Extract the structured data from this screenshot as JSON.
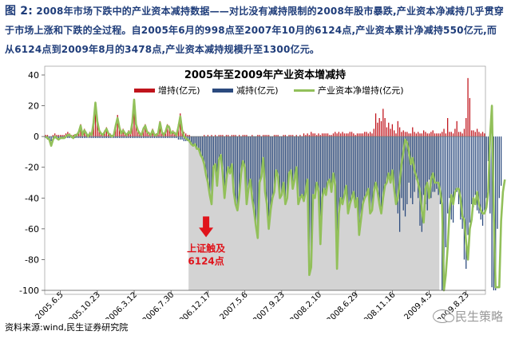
{
  "caption": {
    "figure_label": "图 2:",
    "text": "2008年市场下跌中的产业资本减持数据——对比没有减持限制的2008年股市暴跌,产业资本净减持几乎贯穿于市场上涨和下跌的全过程。自2005年6月的998点至2007年10月的6124点,产业资本累计净减持550亿元,而从6124点到2009年8月的3478点,产业资本减持规模升至1300亿元。"
  },
  "source": "资料来源:wind,民生证券研究院",
  "watermark": "民生策略",
  "colors": {
    "increase": "#c0141c",
    "decrease": "#2b4a7e",
    "net": "#92c05a",
    "shade": "#d3d3d3",
    "arrow": "#e0141c"
  },
  "annotation": {
    "line1": "上证触及",
    "line2": "6124点",
    "x_index": 87
  },
  "chart_data": {
    "type": "bar",
    "title": "2005年至2009年产业资本增减持",
    "xlabel": "",
    "ylabel": "",
    "ylim": [
      -100,
      40
    ],
    "yticks": [
      40,
      20,
      0,
      -20,
      -40,
      -60,
      -80,
      -100
    ],
    "ytick_labels": [
      "40",
      "20",
      "0",
      "-20",
      "-40",
      "-60",
      "-80",
      "-100"
    ],
    "xtick_labels": [
      "2005.6.5",
      "2005.10.23",
      "2006.3.12",
      "2006.7.30",
      "2006.12.17",
      "2007.5.6",
      "2007.9.23",
      "2008.2.10",
      "2008.6.29",
      "2008.11.16",
      "2009.4.5",
      "2009.8.23"
    ],
    "xtick_positions": [
      8,
      28,
      48,
      68,
      88,
      108,
      128,
      148,
      168,
      188,
      208,
      228
    ],
    "shade_range": [
      78,
      214
    ],
    "legend": [
      "增持(亿元)",
      "减持(亿元)",
      "产业资本净增持(亿元)"
    ],
    "legend_position": "top",
    "grid": false,
    "series": [
      {
        "name": "增持(亿元)",
        "values": [
          1,
          1,
          0,
          0,
          1,
          2,
          1,
          1,
          1,
          1,
          1,
          2,
          3,
          2,
          1,
          1,
          1,
          2,
          4,
          8,
          2,
          5,
          3,
          1,
          3,
          2,
          10,
          19,
          12,
          5,
          3,
          2,
          4,
          6,
          3,
          2,
          1,
          2,
          8,
          14,
          7,
          3,
          5,
          3,
          2,
          4,
          3,
          10,
          20,
          9,
          5,
          3,
          2,
          6,
          8,
          4,
          3,
          2,
          5,
          2,
          2,
          3,
          10,
          4,
          2,
          4,
          8,
          7,
          3,
          4,
          3,
          2,
          8,
          15,
          6,
          3,
          2,
          1,
          1,
          0,
          0,
          0,
          0,
          0,
          0,
          0,
          1,
          0,
          1,
          0,
          1,
          0,
          1,
          0,
          1,
          1,
          1,
          0,
          1,
          1,
          0,
          1,
          1,
          1,
          0,
          1,
          0,
          1,
          1,
          1,
          0,
          0,
          1,
          0,
          0,
          1,
          1,
          0,
          1,
          1,
          1,
          1,
          0,
          0,
          1,
          1,
          1,
          0,
          0,
          1,
          1,
          0,
          1,
          1,
          1,
          0,
          1,
          0,
          1,
          0,
          2,
          1,
          2,
          1,
          3,
          2,
          2,
          1,
          2,
          1,
          2,
          2,
          2,
          2,
          1,
          1,
          2,
          3,
          2,
          3,
          2,
          3,
          2,
          2,
          2,
          3,
          3,
          2,
          1,
          2,
          2,
          2,
          2,
          3,
          3,
          2,
          3,
          2,
          5,
          15,
          9,
          12,
          10,
          18,
          12,
          6,
          9,
          5,
          8,
          4,
          2,
          10,
          6,
          3,
          4,
          3,
          3,
          2,
          2,
          6,
          3,
          2,
          3,
          2,
          2,
          4,
          3,
          2,
          2,
          3,
          4,
          2,
          2,
          2,
          2,
          3,
          5,
          2,
          12,
          3,
          3,
          2,
          5,
          10,
          3,
          3,
          2,
          5,
          12,
          38,
          25,
          4,
          4,
          3,
          5,
          3,
          2,
          3,
          2
        ]
      },
      {
        "name": "减持(亿元)",
        "values": [
          -1,
          -2,
          -2,
          -3,
          -1,
          -1,
          -1,
          -1,
          -1,
          -1,
          -1,
          -1,
          -1,
          -1,
          -1,
          -1,
          -1,
          -1,
          -1,
          -1,
          -1,
          -1,
          -1,
          -1,
          -1,
          -1,
          -1,
          -1,
          -1,
          -1,
          -1,
          -1,
          -1,
          -1,
          -1,
          -1,
          -1,
          -1,
          -1,
          -1,
          -1,
          -1,
          -1,
          -1,
          -1,
          -1,
          -1,
          -1,
          -1,
          -1,
          -1,
          -1,
          -1,
          -1,
          -1,
          -1,
          -1,
          -1,
          -1,
          -1,
          -1,
          -1,
          -1,
          -1,
          -1,
          -1,
          -1,
          -1,
          -1,
          -1,
          -1,
          -1,
          -2,
          -2,
          -2,
          -3,
          -3,
          -3,
          -4,
          -5,
          -6,
          -5,
          -8,
          -8,
          -12,
          -14,
          -18,
          -25,
          -30,
          -38,
          -44,
          -20,
          -18,
          -32,
          -15,
          -12,
          -24,
          -40,
          -28,
          -20,
          -24,
          -18,
          -36,
          -44,
          -48,
          -38,
          -24,
          -16,
          -20,
          -44,
          -34,
          -28,
          -40,
          -48,
          -58,
          -66,
          -30,
          -26,
          -14,
          -36,
          -44,
          -60,
          -48,
          -40,
          -36,
          -22,
          -26,
          -40,
          -38,
          -30,
          -44,
          -40,
          -24,
          -22,
          -34,
          -28,
          -20,
          -44,
          -40,
          -38,
          -42,
          -36,
          -28,
          -90,
          -85,
          -38,
          -40,
          -30,
          -36,
          -70,
          -40,
          -34,
          -38,
          -30,
          -28,
          -36,
          -24,
          -32,
          -86,
          -50,
          -40,
          -44,
          -38,
          -32,
          -50,
          -44,
          -40,
          -36,
          -46,
          -40,
          -64,
          -54,
          -44,
          -40,
          -38,
          -34,
          -50,
          -48,
          -36,
          -30,
          -36,
          -44,
          -50,
          -40,
          -32,
          -30,
          -24,
          -30,
          -22,
          -34,
          -44,
          -50,
          -62,
          -40,
          -48,
          -52,
          -44,
          -30,
          -40,
          -44,
          -36,
          -28,
          -40,
          -58,
          -62,
          -38,
          -44,
          -48,
          -28,
          -40,
          -36,
          -36,
          -34,
          -38,
          -44,
          -100,
          -90,
          -72,
          -50,
          -40,
          -54,
          -56,
          -38,
          -36,
          -44,
          -54,
          -60,
          -80,
          -86,
          -64,
          -56,
          -44,
          -46,
          -38,
          -48,
          -50,
          -54,
          -58,
          -48,
          -40,
          -16,
          -50,
          -98,
          -100,
          -100,
          -60,
          -40,
          -32
        ]
      },
      {
        "name": "产业资本净增持(亿元)",
        "values": [
          0,
          -1,
          -2,
          -6,
          -2,
          0,
          -1,
          -2,
          -1,
          -1,
          -1,
          0,
          1,
          1,
          0,
          -1,
          1,
          1,
          3,
          7,
          1,
          4,
          2,
          0,
          2,
          1,
          9,
          22,
          10,
          4,
          2,
          1,
          3,
          5,
          2,
          1,
          0,
          1,
          7,
          12,
          6,
          2,
          4,
          2,
          1,
          3,
          2,
          9,
          24,
          8,
          4,
          2,
          1,
          5,
          7,
          3,
          2,
          1,
          4,
          1,
          1,
          2,
          9,
          3,
          1,
          3,
          7,
          6,
          2,
          3,
          2,
          1,
          6,
          13,
          4,
          0,
          -1,
          -2,
          -3,
          -5,
          -6,
          -5,
          -8,
          -8,
          -12,
          -14,
          -18,
          -25,
          -30,
          -38,
          -44,
          -20,
          -18,
          -32,
          -15,
          -12,
          -24,
          -40,
          -28,
          -20,
          -24,
          -18,
          -36,
          -44,
          -48,
          -38,
          -24,
          -16,
          -20,
          -44,
          -34,
          -28,
          -40,
          -48,
          -58,
          -66,
          -30,
          -26,
          -14,
          -36,
          -44,
          -60,
          -48,
          -40,
          -36,
          -22,
          -26,
          -40,
          -38,
          -30,
          -44,
          -40,
          -24,
          -22,
          -34,
          -28,
          -20,
          -44,
          -40,
          -38,
          -42,
          -36,
          -28,
          -90,
          -85,
          -38,
          -40,
          -30,
          -36,
          -70,
          -40,
          -34,
          -38,
          -30,
          -28,
          -36,
          -24,
          -32,
          -86,
          -50,
          -40,
          -44,
          -38,
          -32,
          -50,
          -44,
          -40,
          -36,
          -46,
          -40,
          -64,
          -54,
          -44,
          -40,
          -38,
          -34,
          -50,
          -48,
          -36,
          -30,
          -36,
          -44,
          -50,
          -40,
          -32,
          -30,
          -24,
          -30,
          -22,
          -34,
          -44,
          -40,
          -30,
          -18,
          -10,
          -2,
          -4,
          -10,
          -18,
          -14,
          -22,
          -26,
          -30,
          -36,
          -48,
          -56,
          -34,
          -30,
          -40,
          -28,
          -24,
          -30,
          -30,
          -30,
          -36,
          -44,
          -100,
          -90,
          -72,
          -48,
          -38,
          -44,
          -36,
          -34,
          -34,
          -40,
          -52,
          -54,
          -68,
          -80,
          -60,
          -54,
          -40,
          -44,
          -36,
          -44,
          -48,
          -50,
          -50,
          -46,
          -36,
          0,
          20,
          -48,
          -98,
          -98,
          -98,
          -55,
          -36,
          -28
        ]
      }
    ]
  }
}
